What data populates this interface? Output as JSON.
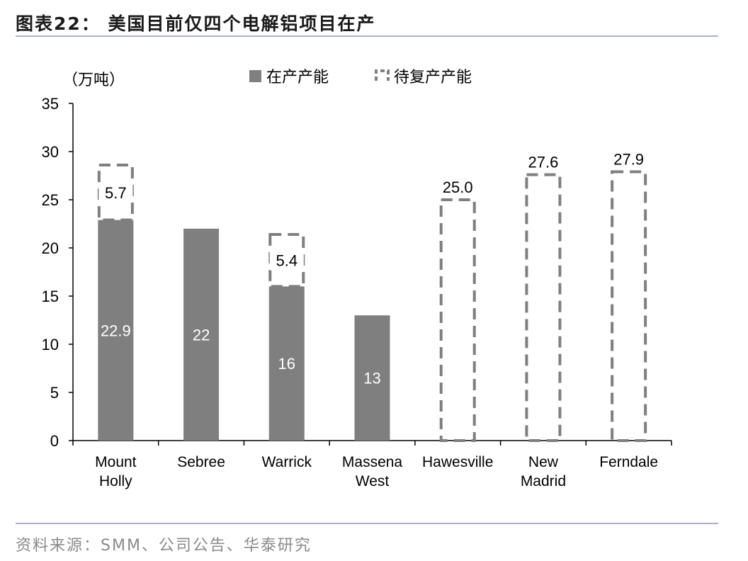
{
  "header": {
    "title": "图表22：  美国目前仅四个电解铝项目在产"
  },
  "footer": {
    "source": "资料来源：SMM、公司公告、华泰研究"
  },
  "chart_data": {
    "type": "bar",
    "unit_label": "（万吨）",
    "ylim": [
      0,
      35
    ],
    "yticks": [
      0,
      5,
      10,
      15,
      20,
      25,
      30,
      35
    ],
    "categories": [
      [
        "Mount",
        "Holly"
      ],
      [
        "Sebree"
      ],
      [
        "Warrick"
      ],
      [
        "Massena",
        "West"
      ],
      [
        "Hawesville"
      ],
      [
        "New",
        "Madrid"
      ],
      [
        "Ferndale"
      ]
    ],
    "series": [
      {
        "name": "在产产能",
        "values": [
          22.9,
          22,
          16,
          13,
          0,
          0,
          0
        ],
        "labels": [
          "22.9",
          "22",
          "16",
          "13",
          "",
          "",
          ""
        ],
        "style": "solid",
        "color": "#7f7f7f"
      },
      {
        "name": "待复产产能",
        "values": [
          5.7,
          0,
          5.4,
          0,
          25.0,
          27.6,
          27.9
        ],
        "labels": [
          "5.7",
          "",
          "5.4",
          "",
          "25.0",
          "27.6",
          "27.9"
        ],
        "style": "dashed",
        "color": "#7f7f7f"
      }
    ],
    "legend_position": "top",
    "grid": false
  }
}
